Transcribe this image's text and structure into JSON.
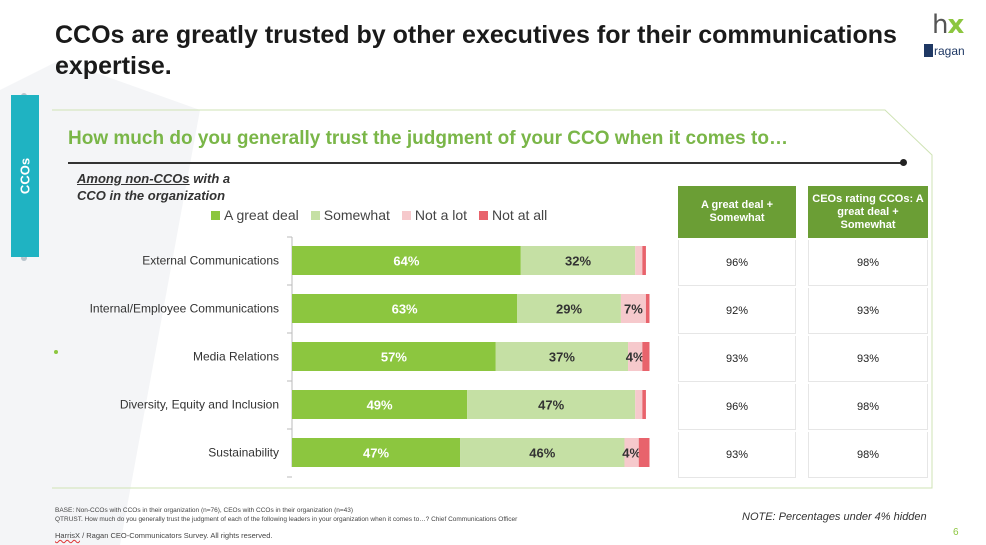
{
  "title": "CCOs are greatly trusted by other executives for their communications expertise.",
  "logo": {
    "top": "hx",
    "bottom": "ragan"
  },
  "side_tab": "CCOs",
  "question": "How much do you generally trust the judgment of your CCO when it comes to…",
  "subgroup": {
    "underlined": "Among non-CCOs",
    "rest_line1": " with a",
    "line2": "CCO in the organization"
  },
  "colors": {
    "great_deal": "#8cc63f",
    "somewhat": "#c5e0a4",
    "not_a_lot": "#f6c9cc",
    "not_at_all": "#e8636c",
    "header_green": "#6b9e35",
    "title_green": "#7ab648"
  },
  "chart_data": {
    "type": "bar",
    "orientation": "horizontal",
    "stacked": true,
    "categories": [
      "External Communications",
      "Internal/Employee Communications",
      "Media Relations",
      "Diversity, Equity and Inclusion",
      "Sustainability"
    ],
    "series": [
      {
        "name": "A great deal",
        "values": [
          64,
          63,
          57,
          49,
          47
        ],
        "labels": [
          "64%",
          "63%",
          "57%",
          "49%",
          "47%"
        ]
      },
      {
        "name": "Somewhat",
        "values": [
          32,
          29,
          37,
          47,
          46
        ],
        "labels": [
          "32%",
          "29%",
          "37%",
          "47%",
          "46%"
        ]
      },
      {
        "name": "Not a lot",
        "values": [
          2,
          7,
          4,
          2,
          4
        ],
        "labels": [
          "",
          "7%",
          "4%",
          "",
          "4%"
        ]
      },
      {
        "name": "Not at all",
        "values": [
          1,
          1,
          2,
          1,
          3
        ],
        "labels": [
          "",
          "",
          "",
          "",
          ""
        ]
      }
    ],
    "xlim": [
      0,
      100
    ],
    "legend_position": "top"
  },
  "table": {
    "col1": {
      "header": "A great deal + Somewhat",
      "values": [
        "96%",
        "92%",
        "93%",
        "96%",
        "93%"
      ]
    },
    "col2": {
      "header": "CEOs rating CCOs: A great deal + Somewhat",
      "values": [
        "98%",
        "93%",
        "93%",
        "98%",
        "98%"
      ]
    }
  },
  "note": "NOTE: Percentages under 4% hidden",
  "base_line1": "BASE: Non-CCOs with CCOs in their organization (n=76), CEOs with CCOs in their organization (n=43)",
  "base_line2": "QTRUST. How much do you generally trust the judgment of each of the following leaders in your organization when it comes to…? Chief Communications Officer",
  "credit_hx": "HarrisX",
  "credit_rest": " / Ragan CEO-Communicators Survey. All rights reserved.",
  "page_number": "6"
}
